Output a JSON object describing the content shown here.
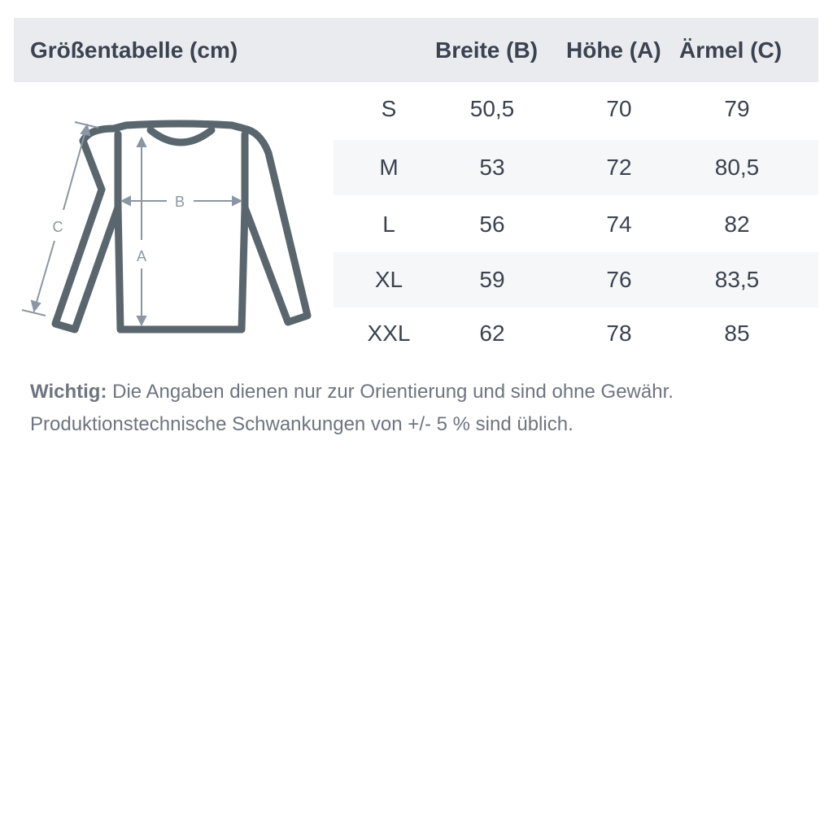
{
  "header": {
    "title": "Größentabelle (cm)",
    "columns": [
      "Breite (B)",
      "Höhe (A)",
      "Ärmel (C)"
    ]
  },
  "illustration": {
    "labels": {
      "a": "A",
      "b": "B",
      "c": "C"
    },
    "colors": {
      "outline": "#5a666d",
      "arrows": "#8a97a2"
    }
  },
  "rows": [
    {
      "size": "S",
      "breite": "50,5",
      "hoehe": "70",
      "aermel": "79"
    },
    {
      "size": "M",
      "breite": "53",
      "hoehe": "72",
      "aermel": "80,5"
    },
    {
      "size": "L",
      "breite": "56",
      "hoehe": "74",
      "aermel": "82"
    },
    {
      "size": "XL",
      "breite": "59",
      "hoehe": "76",
      "aermel": "83,5"
    },
    {
      "size": "XXL",
      "breite": "62",
      "hoehe": "78",
      "aermel": "85"
    }
  ],
  "note": {
    "label": "Wichtig:",
    "line1": "Die Angaben dienen nur zur Orientierung und sind ohne Gewähr.",
    "line2": "Produktionstechnische Schwankungen von +/- 5 % sind üblich."
  }
}
